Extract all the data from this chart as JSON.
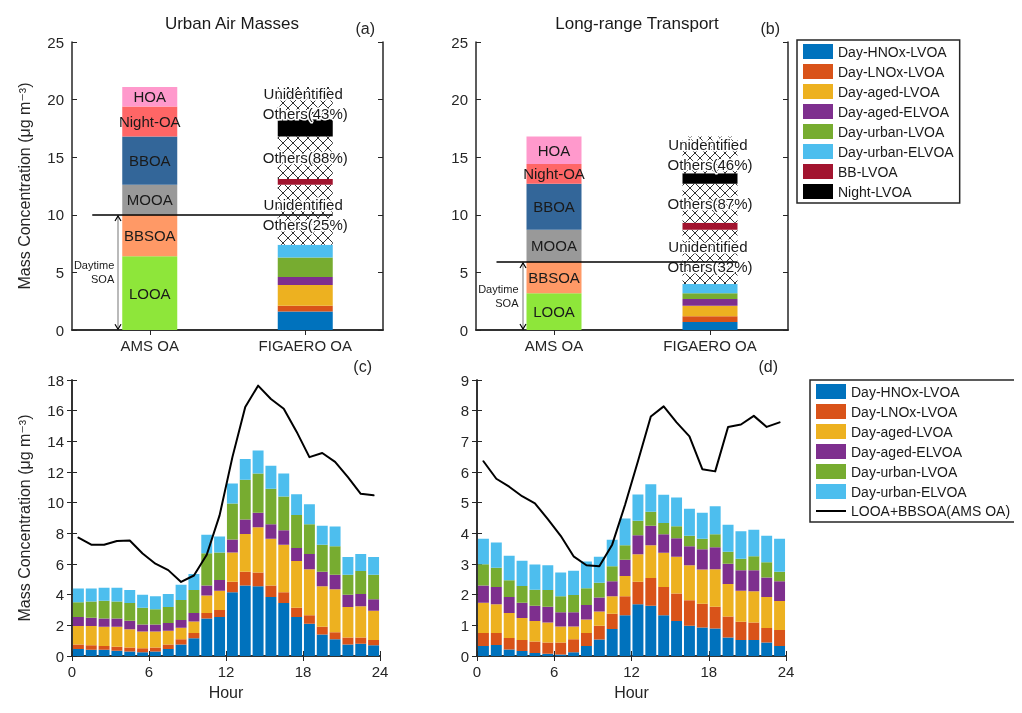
{
  "chart_data": [
    {
      "type": "bar",
      "title": "Urban Air Masses",
      "ylabel": "Mass Concentration (μg m⁻³)",
      "categories": [
        "AMS OA",
        "FIGAERO OA"
      ],
      "stacked": true,
      "ylim": [
        0,
        25
      ],
      "yticks": [
        0,
        5,
        10,
        15,
        20,
        25
      ],
      "grid": false,
      "legend": false,
      "ref_lines": [
        {
          "axis": "y",
          "value": 10,
          "color": "#000000"
        }
      ],
      "annotations": [
        "(a)",
        "Daytime SOA"
      ],
      "series": [
        {
          "color": "#8ee63a",
          "values": [
            6.4,
            null
          ],
          "value_labels": [
            "LOOA",
            null
          ]
        },
        {
          "color": "#ff9966",
          "values": [
            3.6,
            null
          ],
          "value_labels": [
            "BBSOA",
            null
          ]
        },
        {
          "color": "#999999",
          "values": [
            2.6,
            null
          ],
          "value_labels": [
            "MOOA",
            null
          ]
        },
        {
          "color": "#336699",
          "values": [
            4.2,
            null
          ],
          "value_labels": [
            "BBOA",
            null
          ]
        },
        {
          "color": "#ff6666",
          "values": [
            2.6,
            null
          ],
          "value_labels": [
            "Night-OA",
            null
          ]
        },
        {
          "color": "#ff99cc",
          "values": [
            1.7,
            null
          ],
          "value_labels": [
            "HOA",
            null
          ]
        },
        {
          "color": "#0072bd",
          "values": [
            null,
            1.6
          ]
        },
        {
          "color": "#d95319",
          "values": [
            null,
            0.5
          ]
        },
        {
          "color": "#edb120",
          "values": [
            null,
            1.8
          ]
        },
        {
          "color": "#7e2f8e",
          "values": [
            null,
            0.7
          ]
        },
        {
          "color": "#77ac30",
          "values": [
            null,
            1.7
          ]
        },
        {
          "color": "#4dbeee",
          "values": [
            null,
            1.1
          ]
        },
        {
          "color": "#ffffff",
          "values": [
            null,
            5.2
          ],
          "value_labels": [
            null,
            "Unidentified Others(25%)"
          ]
        },
        {
          "color": "#a2142f",
          "values": [
            null,
            0.5
          ]
        },
        {
          "color": "#ffffff",
          "values": [
            null,
            3.7
          ],
          "value_labels": [
            null,
            "Others(88%)"
          ]
        },
        {
          "color": "#000000",
          "values": [
            null,
            1.5
          ]
        },
        {
          "color": "#ffffff",
          "values": [
            null,
            2.8
          ],
          "value_labels": [
            null,
            "Unidentified Others(43%)"
          ]
        }
      ]
    },
    {
      "type": "bar",
      "title": "Long-range Transport",
      "categories": [
        "AMS OA",
        "FIGAERO OA"
      ],
      "stacked": true,
      "ylim": [
        0,
        25
      ],
      "yticks": [
        0,
        5,
        10,
        15,
        20,
        25
      ],
      "grid": false,
      "legend": "right",
      "ref_lines": [
        {
          "axis": "y",
          "value": 5.9,
          "color": "#000000"
        }
      ],
      "annotations": [
        "(b)",
        "Daytime SOA"
      ],
      "series": [
        {
          "color": "#8ee63a",
          "values": [
            3.2,
            null
          ],
          "value_labels": [
            "LOOA",
            null
          ]
        },
        {
          "color": "#ff9966",
          "values": [
            2.7,
            null
          ],
          "value_labels": [
            "BBSOA",
            null
          ]
        },
        {
          "color": "#999999",
          "values": [
            2.8,
            null
          ],
          "value_labels": [
            "MOOA",
            null
          ]
        },
        {
          "color": "#336699",
          "values": [
            4.0,
            null
          ],
          "value_labels": [
            "BBOA",
            null
          ]
        },
        {
          "color": "#ff6666",
          "values": [
            1.7,
            null
          ],
          "value_labels": [
            "Night-OA",
            null
          ]
        },
        {
          "color": "#ff99cc",
          "values": [
            2.4,
            null
          ],
          "value_labels": [
            "HOA",
            null
          ]
        },
        {
          "name": "Day-HNOx-LVOA",
          "color": "#0072bd",
          "values": [
            null,
            0.7
          ]
        },
        {
          "name": "Day-LNOx-LVOA",
          "color": "#d95319",
          "values": [
            null,
            0.5
          ]
        },
        {
          "name": "Day-aged-LVOA",
          "color": "#edb120",
          "values": [
            null,
            0.9
          ]
        },
        {
          "name": "Day-aged-ELVOA",
          "color": "#7e2f8e",
          "values": [
            null,
            0.6
          ]
        },
        {
          "name": "Day-urban-LVOA",
          "color": "#77ac30",
          "values": [
            null,
            0.5
          ]
        },
        {
          "name": "Day-urban-ELVOA",
          "color": "#4dbeee",
          "values": [
            null,
            0.8
          ]
        },
        {
          "color": "#ffffff",
          "values": [
            null,
            4.7
          ],
          "value_labels": [
            null,
            "Unidentified Others(32%)"
          ]
        },
        {
          "name": "BB-LVOA",
          "color": "#a2142f",
          "values": [
            null,
            0.6
          ]
        },
        {
          "color": "#ffffff",
          "values": [
            null,
            3.4
          ],
          "value_labels": [
            null,
            "Others(87%)"
          ]
        },
        {
          "name": "Night-LVOA",
          "color": "#000000",
          "values": [
            null,
            0.9
          ]
        },
        {
          "color": "#ffffff",
          "values": [
            null,
            3.2
          ],
          "value_labels": [
            null,
            "Unidentified Others(46%)"
          ]
        }
      ]
    },
    {
      "type": "bar",
      "ylabel": "Mass Concentration (μg m⁻³)",
      "xlabel": "Hour",
      "annotations": [
        "(c)"
      ],
      "stacked": true,
      "xlim": [
        0,
        24
      ],
      "xticks": [
        0,
        6,
        12,
        18,
        24
      ],
      "ylim": [
        0,
        18
      ],
      "yticks": [
        0,
        2,
        4,
        6,
        8,
        10,
        12,
        14,
        16,
        18
      ],
      "grid": false,
      "legend": false,
      "marker": "none",
      "x": [
        0.5,
        1.5,
        2.5,
        3.5,
        4.5,
        5.5,
        6.5,
        7.5,
        8.5,
        9.5,
        10.5,
        11.5,
        12.5,
        13.5,
        14.5,
        15.5,
        16.5,
        17.5,
        18.5,
        19.5,
        20.5,
        21.5,
        22.5,
        23.5
      ],
      "series": [
        {
          "color": "#0072bd",
          "values": [
            0.45,
            0.4,
            0.4,
            0.35,
            0.3,
            0.25,
            0.3,
            0.45,
            0.75,
            1.15,
            2.45,
            2.55,
            4.15,
            4.6,
            4.55,
            3.85,
            3.45,
            2.55,
            2.1,
            1.4,
            1.1,
            0.75,
            0.8,
            0.7
          ]
        },
        {
          "color": "#d95319",
          "values": [
            0.3,
            0.3,
            0.25,
            0.25,
            0.25,
            0.25,
            0.25,
            0.3,
            0.35,
            0.35,
            0.35,
            0.45,
            0.7,
            0.9,
            0.9,
            0.75,
            0.7,
            0.6,
            0.55,
            0.5,
            0.45,
            0.45,
            0.4,
            0.35
          ]
        },
        {
          "color": "#edb120",
          "values": [
            1.2,
            1.25,
            1.25,
            1.3,
            1.2,
            1.1,
            1.05,
            0.9,
            0.75,
            0.75,
            1.15,
            1.25,
            1.9,
            2.45,
            2.95,
            3.05,
            3.1,
            3.05,
            3.0,
            2.65,
            2.8,
            2.0,
            2.05,
            1.9
          ]
        },
        {
          "color": "#7e2f8e",
          "values": [
            0.6,
            0.55,
            0.55,
            0.55,
            0.55,
            0.45,
            0.45,
            0.5,
            0.5,
            0.55,
            0.65,
            0.7,
            0.85,
            0.95,
            0.95,
            0.95,
            0.95,
            0.85,
            1.0,
            0.95,
            0.95,
            0.8,
            0.8,
            0.75
          ]
        },
        {
          "color": "#77ac30",
          "values": [
            0.95,
            1.05,
            1.15,
            1.1,
            1.15,
            1.1,
            1.0,
            1.05,
            1.3,
            1.5,
            2.1,
            1.8,
            2.35,
            2.6,
            2.55,
            2.3,
            2.2,
            2.15,
            1.95,
            1.75,
            1.85,
            1.3,
            1.5,
            1.6
          ]
        },
        {
          "color": "#4dbeee",
          "values": [
            0.9,
            0.85,
            0.85,
            0.9,
            0.85,
            0.85,
            0.85,
            0.85,
            1.0,
            1.05,
            1.2,
            1.05,
            1.3,
            1.35,
            1.5,
            1.5,
            1.5,
            1.35,
            1.3,
            1.25,
            1.3,
            1.15,
            1.1,
            1.15
          ]
        },
        {
          "type": "line",
          "color": "#000000",
          "values": [
            7.72,
            7.26,
            7.26,
            7.5,
            7.53,
            6.68,
            6.02,
            5.6,
            4.83,
            5.25,
            6.6,
            9.17,
            12.97,
            16.24,
            17.63,
            16.76,
            16.12,
            14.63,
            12.97,
            13.24,
            12.66,
            11.66,
            10.58,
            10.48
          ]
        }
      ]
    },
    {
      "type": "bar",
      "xlabel": "Hour",
      "annotations": [
        "(d)"
      ],
      "stacked": true,
      "xlim": [
        0,
        24
      ],
      "xticks": [
        0,
        6,
        12,
        18,
        24
      ],
      "ylim": [
        0,
        9
      ],
      "yticks": [
        0,
        1,
        2,
        3,
        4,
        5,
        6,
        7,
        8,
        9
      ],
      "grid": false,
      "legend": "right",
      "marker": "none",
      "x": [
        0.5,
        1.5,
        2.5,
        3.5,
        4.5,
        5.5,
        6.5,
        7.5,
        8.5,
        9.5,
        10.5,
        11.5,
        12.5,
        13.5,
        14.5,
        15.5,
        16.5,
        17.5,
        18.5,
        19.5,
        20.5,
        21.5,
        22.5,
        23.5
      ],
      "series": [
        {
          "name": "Day-HNOx-LVOA",
          "color": "#0072bd",
          "values": [
            0.33,
            0.36,
            0.21,
            0.16,
            0.1,
            0.07,
            0.05,
            0.12,
            0.33,
            0.54,
            0.88,
            1.33,
            1.69,
            1.64,
            1.33,
            1.14,
            0.99,
            0.93,
            0.9,
            0.6,
            0.52,
            0.52,
            0.44,
            0.33
          ]
        },
        {
          "name": "Day-LNOx-LVOA",
          "color": "#d95319",
          "values": [
            0.42,
            0.39,
            0.38,
            0.36,
            0.37,
            0.37,
            0.39,
            0.43,
            0.42,
            0.45,
            0.5,
            0.62,
            0.73,
            0.9,
            0.92,
            0.9,
            0.83,
            0.77,
            0.71,
            0.69,
            0.6,
            0.57,
            0.47,
            0.52
          ]
        },
        {
          "name": "Day-aged-LVOA",
          "color": "#edb120",
          "values": [
            0.99,
            0.94,
            0.81,
            0.72,
            0.67,
            0.65,
            0.52,
            0.41,
            0.44,
            0.46,
            0.57,
            0.66,
            0.9,
            1.07,
            1.12,
            1.2,
            1.14,
            1.12,
            1.22,
            1.06,
            1.01,
            1.02,
            1.01,
            0.94
          ]
        },
        {
          "name": "Day-aged-ELVOA",
          "color": "#7e2f8e",
          "values": [
            0.56,
            0.56,
            0.52,
            0.5,
            0.5,
            0.52,
            0.47,
            0.47,
            0.47,
            0.46,
            0.49,
            0.53,
            0.62,
            0.64,
            0.6,
            0.6,
            0.62,
            0.66,
            0.72,
            0.66,
            0.67,
            0.69,
            0.64,
            0.65
          ]
        },
        {
          "name": "Day-urban-LVOA",
          "color": "#77ac30",
          "values": [
            0.69,
            0.63,
            0.55,
            0.54,
            0.52,
            0.54,
            0.52,
            0.56,
            0.55,
            0.48,
            0.49,
            0.47,
            0.47,
            0.45,
            0.37,
            0.39,
            0.34,
            0.34,
            0.42,
            0.39,
            0.37,
            0.45,
            0.5,
            0.31
          ]
        },
        {
          "name": "Day-urban-ELVOA",
          "color": "#4dbeee",
          "values": [
            0.83,
            0.82,
            0.8,
            0.83,
            0.82,
            0.81,
            0.77,
            0.79,
            0.87,
            0.85,
            0.86,
            0.87,
            0.86,
            0.9,
            0.92,
            0.94,
            0.88,
            0.85,
            0.91,
            0.88,
            0.9,
            0.87,
            0.86,
            1.07
          ]
        },
        {
          "name": "LOOA+BBSOA(AMS OA)",
          "type": "line",
          "color": "#000000",
          "values": [
            6.35,
            5.78,
            5.52,
            5.21,
            4.98,
            4.46,
            3.92,
            3.25,
            2.96,
            2.93,
            3.63,
            4.93,
            6.35,
            7.81,
            8.14,
            7.62,
            7.16,
            6.09,
            6.02,
            7.47,
            7.55,
            7.83,
            7.47,
            7.62
          ]
        }
      ]
    }
  ]
}
